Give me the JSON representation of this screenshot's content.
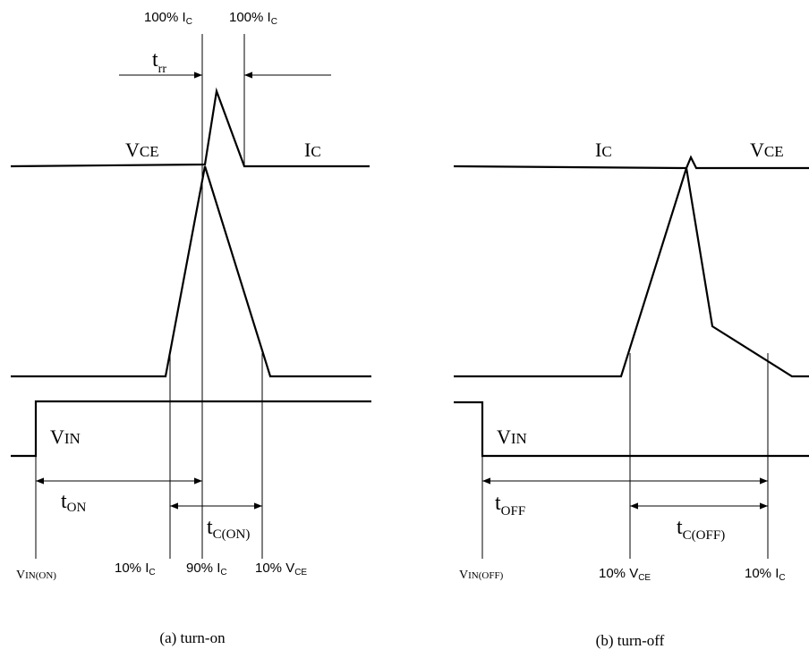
{
  "turn_on": {
    "top_label_left": {
      "main": "100% I",
      "sub": "C"
    },
    "top_label_right": {
      "main": "100% I",
      "sub": "C"
    },
    "t_rr": {
      "main": "t",
      "sub": "rr"
    },
    "v_ce": {
      "main": "V",
      "sub": "CE"
    },
    "i_c": {
      "main": "I",
      "sub": "C"
    },
    "v_in": {
      "main": "V",
      "sub": "IN"
    },
    "t_on": {
      "main": "t",
      "sub": "ON"
    },
    "t_c_on": {
      "main": "t",
      "sub": "C(ON)"
    },
    "bottom_vin": {
      "main": "V",
      "sub": "IN(ON)"
    },
    "bottom_10_ic": {
      "main": "10% I",
      "sub": "C"
    },
    "bottom_90_ic": {
      "main": "90% I",
      "sub": "C"
    },
    "bottom_10_vce": {
      "main": "10% V",
      "sub": "CE"
    },
    "caption": "(a) turn-on"
  },
  "turn_off": {
    "i_c": {
      "main": "I",
      "sub": "C"
    },
    "v_ce": {
      "main": "V",
      "sub": "CE"
    },
    "v_in": {
      "main": "V",
      "sub": "IN"
    },
    "t_off": {
      "main": "t",
      "sub": "OFF"
    },
    "t_c_off": {
      "main": "t",
      "sub": "C(OFF)"
    },
    "bottom_vin": {
      "main": "V",
      "sub": "IN(OFF)"
    },
    "bottom_10_vce": {
      "main": "10% V",
      "sub": "CE"
    },
    "bottom_10_ic": {
      "main": "10% I",
      "sub": "C"
    },
    "caption": "(b) turn-off"
  },
  "colors": {
    "line": "#000000",
    "background": "#ffffff"
  }
}
